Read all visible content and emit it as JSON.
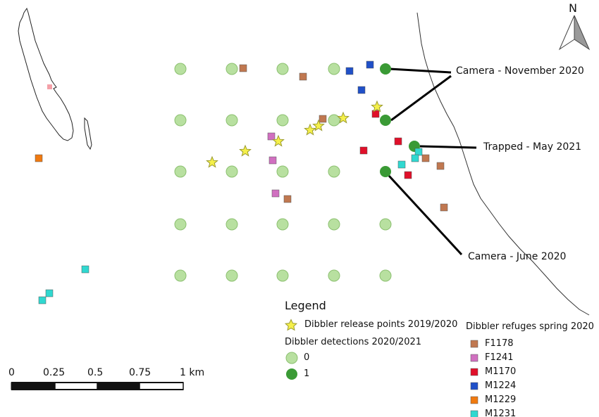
{
  "north_arrow": {
    "label": "N"
  },
  "scale_bar": {
    "ticks": [
      "0",
      "0.25",
      "0.5",
      "0.75",
      "1 km"
    ]
  },
  "annotations": {
    "camera_nov": "Camera - November 2020",
    "trapped_may": "Trapped - May 2021",
    "camera_june": "Camera - June 2020"
  },
  "legend": {
    "title": "Legend",
    "release_points": "Dibbler release points 2019/2020",
    "detections_title": "Dibbler detections 2020/2021",
    "detection_0": "0",
    "detection_1": "1",
    "refuges_title": "Dibbler refuges spring 2020",
    "refuges": [
      {
        "label": "F1178",
        "color": "#c07850"
      },
      {
        "label": "F1241",
        "color": "#d070c0"
      },
      {
        "label": "M1170",
        "color": "#e0102a"
      },
      {
        "label": "M1224",
        "color": "#2050c8"
      },
      {
        "label": "M1229",
        "color": "#f07a10"
      },
      {
        "label": "M1231",
        "color": "#30d8d0"
      }
    ]
  },
  "colors": {
    "detection_0_fill": "#b8e0a0",
    "detection_0_stroke": "#8cc070",
    "detection_1_fill": "#3a9a35",
    "star_fill": "#f5f04a",
    "star_stroke": "#9a9a30"
  }
}
